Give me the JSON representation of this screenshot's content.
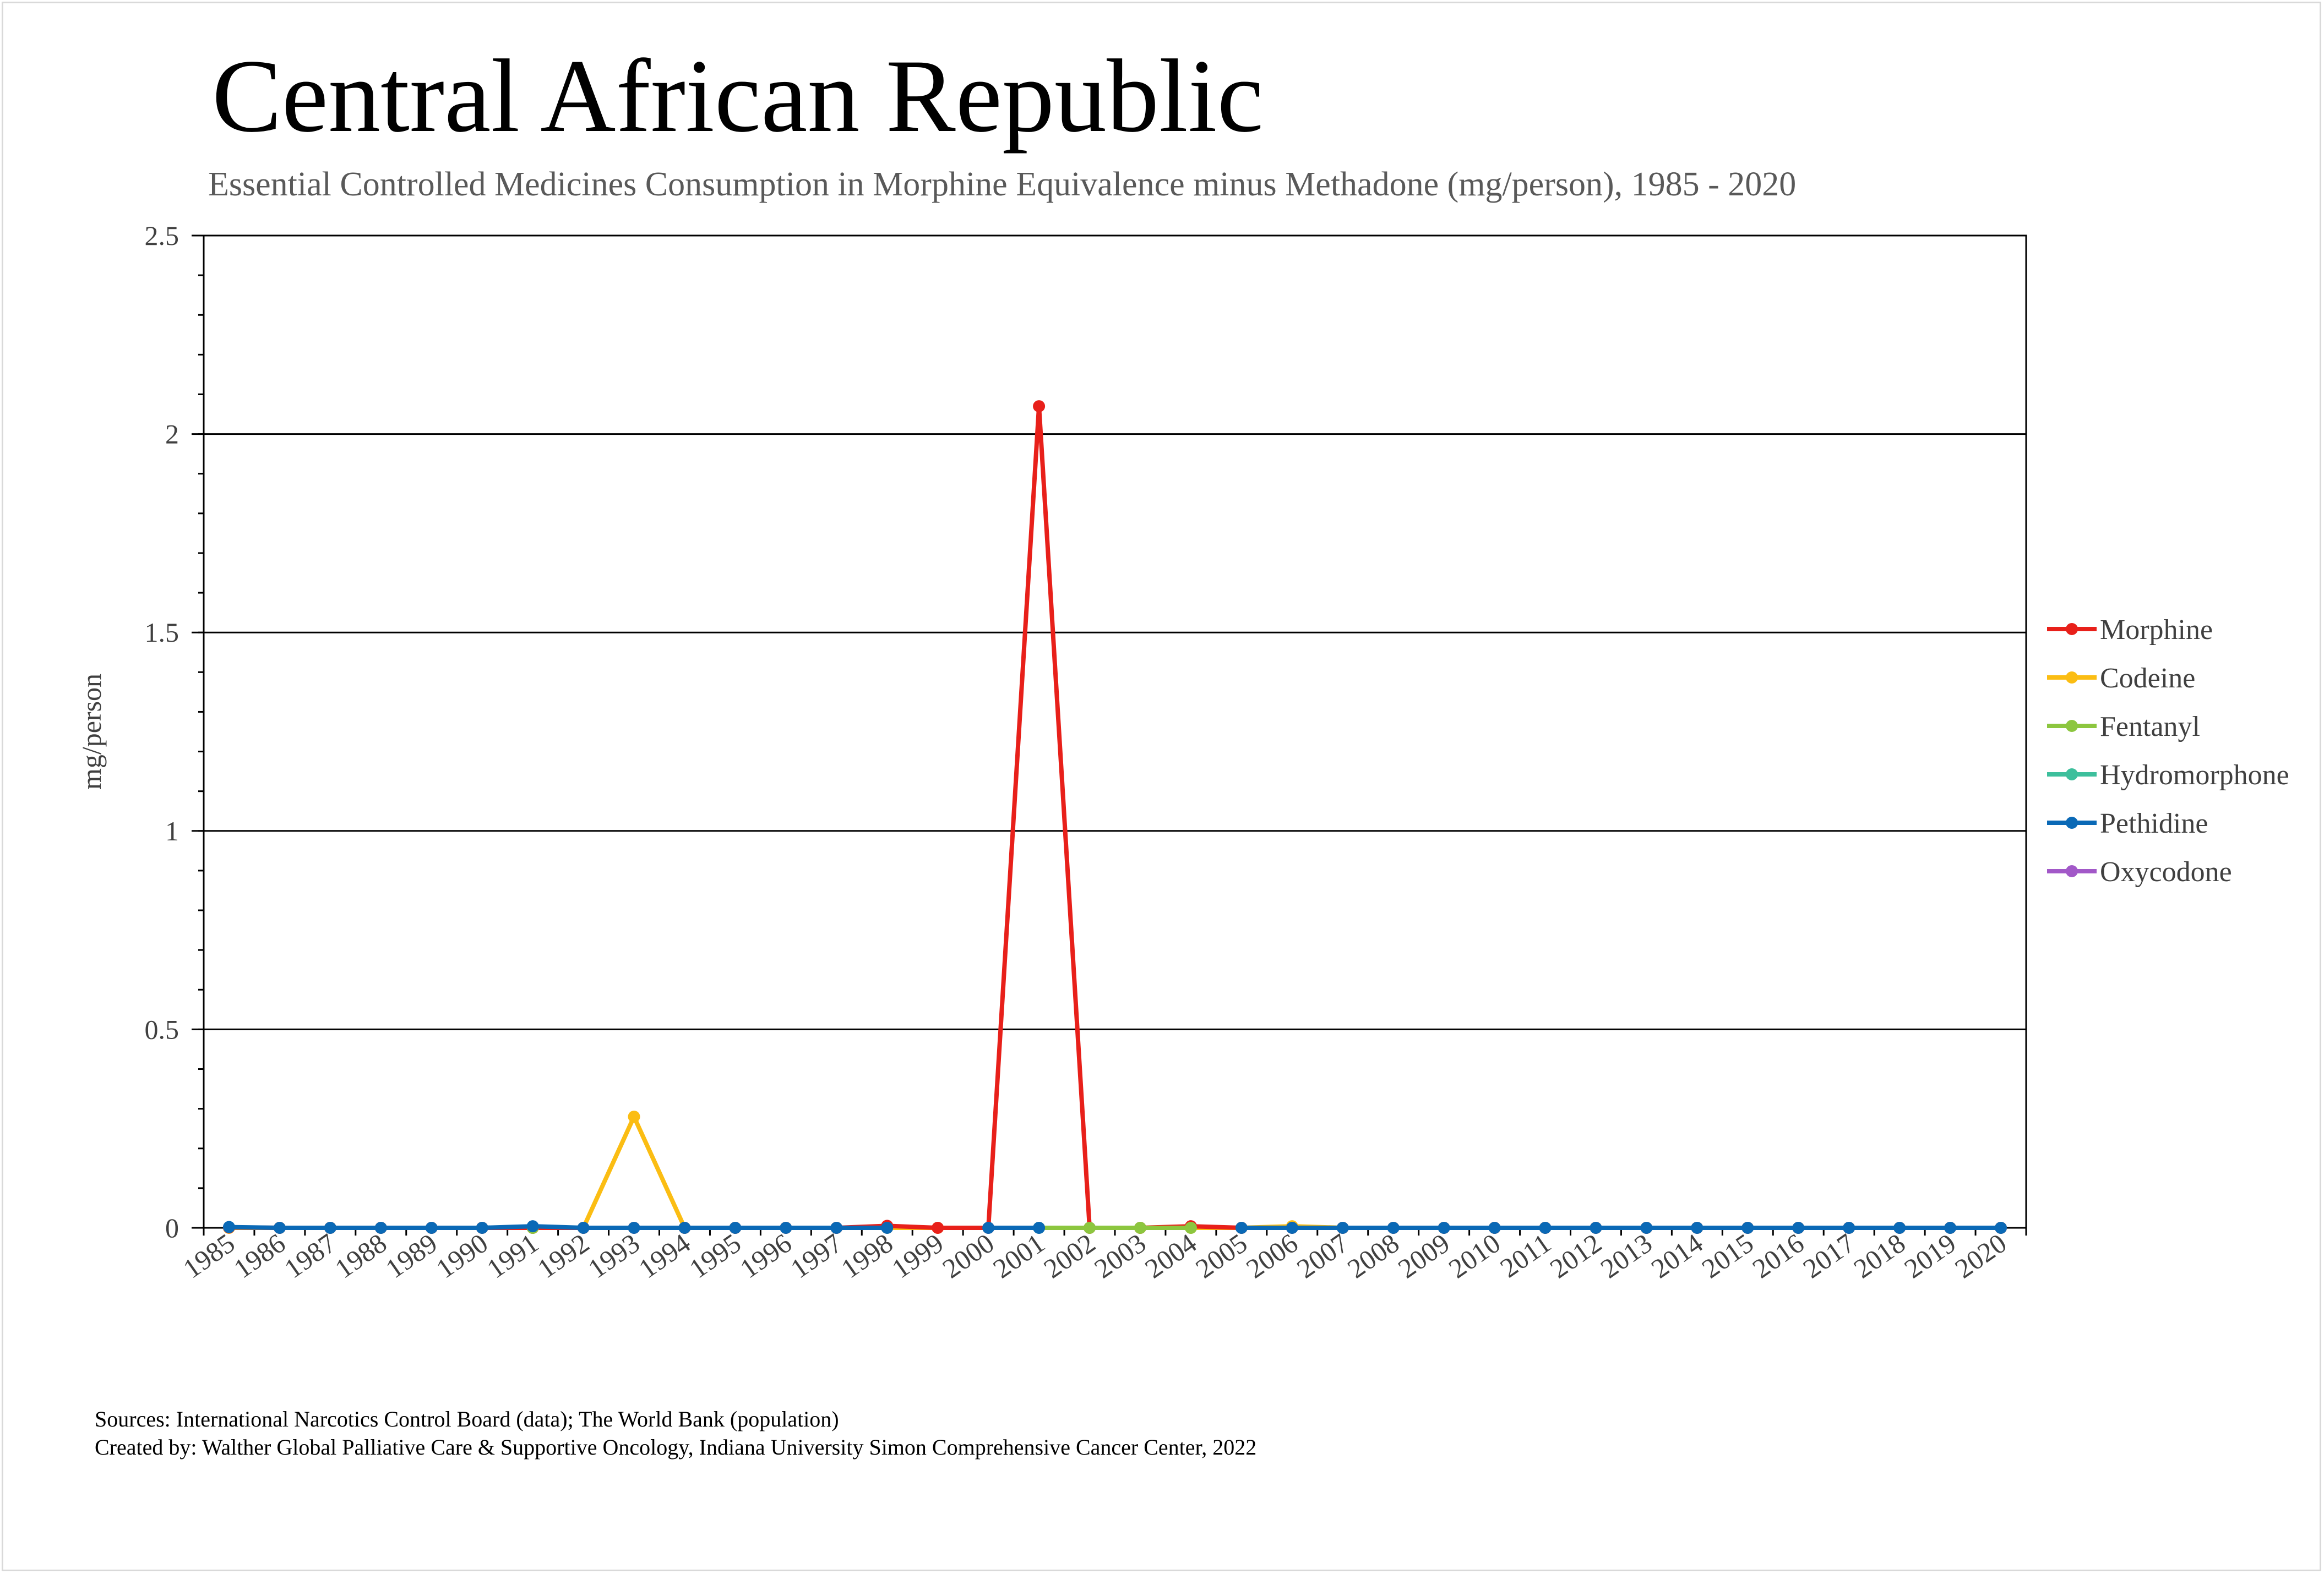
{
  "chart_data": {
    "type": "line",
    "title": "Central African Republic",
    "subtitle": "Essential Controlled Medicines Consumption in Morphine Equivalence minus Methadone (mg/person), 1985 - 2020",
    "xlabel": "",
    "ylabel": "mg/person",
    "ylim": [
      0,
      2.5
    ],
    "yticks": [
      "0",
      "0.5",
      "1",
      "1.5",
      "2",
      "2.5"
    ],
    "ytick_values": [
      0,
      0.5,
      1,
      1.5,
      2,
      2.5
    ],
    "grid": true,
    "legend_position": "right",
    "categories": [
      "1985",
      "1986",
      "1987",
      "1988",
      "1989",
      "1990",
      "1991",
      "1992",
      "1993",
      "1994",
      "1995",
      "1996",
      "1997",
      "1998",
      "1999",
      "2000",
      "2001",
      "2002",
      "2003",
      "2004",
      "2005",
      "2006",
      "2007",
      "2008",
      "2009",
      "2010",
      "2011",
      "2012",
      "2013",
      "2014",
      "2015",
      "2016",
      "2017",
      "2018",
      "2019",
      "2020"
    ],
    "series": [
      {
        "name": "Morphine",
        "color": "#e8201a",
        "values": [
          0.001,
          0,
          0,
          0,
          0,
          0,
          0,
          0,
          0,
          0,
          0,
          0,
          0,
          0.005,
          0,
          0,
          2.07,
          0,
          0,
          0.004,
          0,
          0,
          0,
          0,
          0,
          0,
          0,
          0,
          0,
          0,
          0,
          0,
          0,
          0,
          0,
          0
        ]
      },
      {
        "name": "Codeine",
        "color": "#fbbd13",
        "values": [
          0,
          0,
          0,
          0,
          0,
          0,
          0,
          0,
          0.28,
          0,
          0,
          0,
          0,
          0,
          0,
          null,
          null,
          null,
          0,
          0,
          0,
          0.004,
          0,
          0,
          0,
          0,
          0,
          0,
          0,
          0,
          0,
          0,
          0,
          0,
          0,
          0
        ]
      },
      {
        "name": "Fentanyl",
        "color": "#8cc63f",
        "values": [
          null,
          null,
          null,
          null,
          null,
          null,
          0,
          null,
          null,
          null,
          null,
          null,
          null,
          null,
          null,
          null,
          0,
          0,
          0,
          0,
          null,
          null,
          null,
          null,
          null,
          null,
          null,
          null,
          null,
          null,
          null,
          null,
          null,
          null,
          null,
          null
        ]
      },
      {
        "name": "Hydromorphone",
        "color": "#3dbf9c",
        "values": [
          null,
          null,
          null,
          null,
          null,
          null,
          null,
          null,
          null,
          null,
          null,
          null,
          null,
          null,
          null,
          null,
          null,
          null,
          null,
          null,
          null,
          null,
          null,
          null,
          null,
          null,
          null,
          null,
          null,
          null,
          null,
          null,
          null,
          null,
          null,
          null
        ]
      },
      {
        "name": "Pethidine",
        "color": "#0a69b6",
        "values": [
          0.002,
          0,
          0,
          0,
          0,
          0,
          0.004,
          0,
          0,
          0,
          0,
          0,
          0,
          0,
          null,
          0,
          0,
          null,
          null,
          null,
          0,
          0,
          0,
          0,
          0,
          0,
          0,
          0,
          0,
          0,
          0,
          0,
          0,
          0,
          0,
          0
        ]
      },
      {
        "name": "Oxycodone",
        "color": "#a258c8",
        "values": [
          null,
          null,
          null,
          null,
          null,
          null,
          null,
          null,
          null,
          null,
          null,
          null,
          null,
          null,
          null,
          null,
          null,
          null,
          null,
          null,
          null,
          null,
          null,
          null,
          null,
          null,
          null,
          null,
          null,
          null,
          null,
          null,
          null,
          null,
          null,
          null
        ]
      }
    ]
  },
  "footer": {
    "sources": "Sources: International Narcotics Control Board (data); The World Bank (population)",
    "created_by": "Created by: Walther Global Palliative Care & Supportive Oncology, Indiana University Simon Comprehensive Cancer Center, 2022"
  }
}
